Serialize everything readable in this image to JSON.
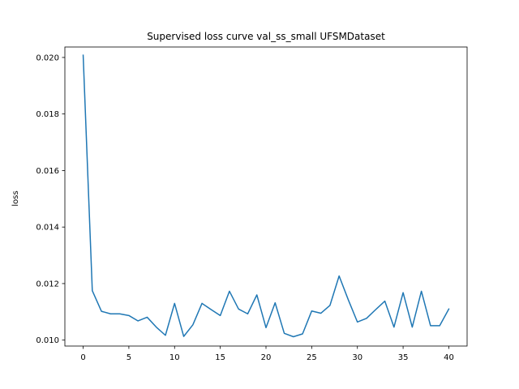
{
  "chart_data": {
    "type": "line",
    "title": "Supervised loss curve val_ss_small UFSMDataset",
    "xlabel": "",
    "ylabel": "loss",
    "xlim": [
      -2,
      42
    ],
    "ylim": [
      0.00979,
      0.02037
    ],
    "xticks": [
      0,
      5,
      10,
      15,
      20,
      25,
      30,
      35,
      40
    ],
    "xtick_labels": [
      "0",
      "5",
      "10",
      "15",
      "20",
      "25",
      "30",
      "35",
      "40"
    ],
    "yticks": [
      0.01,
      0.012,
      0.014,
      0.016,
      0.018,
      0.02
    ],
    "ytick_labels": [
      "0.010",
      "0.012",
      "0.014",
      "0.016",
      "0.018",
      "0.020"
    ],
    "grid": false,
    "line_color": "#1f77b4",
    "series": [
      {
        "x": [
          0,
          1,
          2,
          3,
          4,
          5,
          6,
          7,
          8,
          9,
          10,
          11,
          12,
          13,
          14,
          15,
          16,
          17,
          18,
          19,
          20,
          21,
          22,
          23,
          24,
          25,
          26,
          27,
          28,
          29,
          30,
          31,
          32,
          33,
          34,
          35,
          36,
          37,
          38,
          39,
          40
        ],
        "values": [
          0.02008,
          0.01175,
          0.01102,
          0.01093,
          0.01093,
          0.01087,
          0.01068,
          0.01081,
          0.01046,
          0.01017,
          0.0113,
          0.01013,
          0.01054,
          0.0113,
          0.01108,
          0.01087,
          0.01173,
          0.0111,
          0.01093,
          0.0116,
          0.01044,
          0.01132,
          0.01024,
          0.01012,
          0.01022,
          0.01103,
          0.01095,
          0.01123,
          0.01227,
          0.01143,
          0.01064,
          0.01077,
          0.01108,
          0.01138,
          0.01046,
          0.01168,
          0.01046,
          0.01173,
          0.01051,
          0.01051,
          0.0111
        ]
      }
    ]
  }
}
